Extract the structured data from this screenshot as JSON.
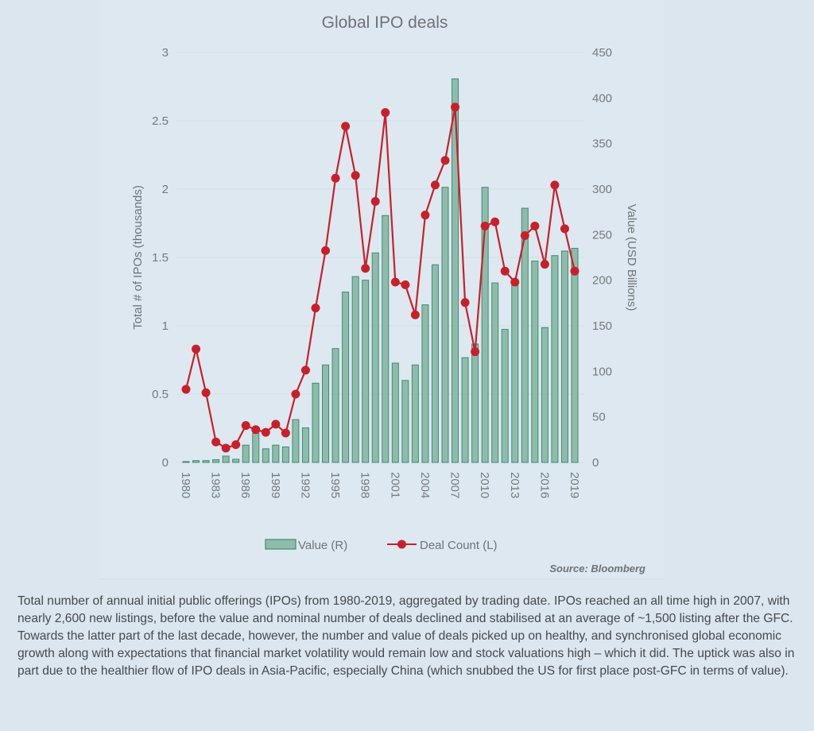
{
  "chart_data": {
    "type": "bar+line",
    "title": "Global IPO deals",
    "ylabel_left": "Total # of IPOs (thousands)",
    "ylabel_right": "Value (USD Billions)",
    "xlabel": "",
    "ylim_left": [
      0,
      3
    ],
    "ylim_right": [
      0,
      450
    ],
    "yticks_left": [
      "0",
      "0.5",
      "1",
      "1.5",
      "2",
      "2.5",
      "3"
    ],
    "yticks_right": [
      "0",
      "50",
      "100",
      "150",
      "200",
      "250",
      "300",
      "350",
      "400",
      "450"
    ],
    "xtick_labels": [
      "1980",
      "1983",
      "1986",
      "1989",
      "1992",
      "1995",
      "1998",
      "2001",
      "2004",
      "2007",
      "2010",
      "2013",
      "2016",
      "2019"
    ],
    "grid": true,
    "legend_position": "bottom",
    "categories": [
      "1980",
      "1981",
      "1982",
      "1983",
      "1984",
      "1985",
      "1986",
      "1987",
      "1988",
      "1989",
      "1990",
      "1991",
      "1992",
      "1993",
      "1994",
      "1995",
      "1996",
      "1997",
      "1998",
      "1999",
      "2000",
      "2001",
      "2002",
      "2003",
      "2004",
      "2005",
      "2006",
      "2007",
      "2008",
      "2009",
      "2010",
      "2011",
      "2012",
      "2013",
      "2014",
      "2015",
      "2016",
      "2017",
      "2018",
      "2019"
    ],
    "series": [
      {
        "name": "Value (R)",
        "type": "bar",
        "axis": "right",
        "color": "#8fbcaa",
        "edge_color": "#3f8a73",
        "values": [
          1,
          2,
          2,
          3,
          7,
          3.5,
          19,
          32,
          15,
          19,
          17,
          47,
          38,
          87,
          107,
          125,
          187,
          204,
          200,
          230,
          271,
          109,
          90,
          107,
          173,
          217,
          302,
          421,
          115,
          130,
          302,
          197,
          146,
          200,
          279,
          221,
          148,
          227,
          232,
          235
        ]
      },
      {
        "name": "Deal Count (L)",
        "type": "line",
        "axis": "left",
        "color": "#c8202a",
        "values": [
          0.535,
          0.83,
          0.51,
          0.15,
          0.105,
          0.13,
          0.27,
          0.24,
          0.22,
          0.28,
          0.215,
          0.5,
          0.675,
          1.13,
          1.55,
          2.08,
          2.46,
          2.1,
          1.42,
          1.91,
          2.56,
          1.32,
          1.3,
          1.08,
          1.81,
          2.03,
          2.21,
          2.6,
          1.17,
          0.81,
          1.73,
          1.76,
          1.4,
          1.32,
          1.66,
          1.73,
          1.45,
          2.03,
          1.71,
          1.4
        ]
      }
    ],
    "source": "Source: Bloomberg"
  },
  "caption": "Total number of annual initial public offerings (IPOs) from 1980-2019, aggregated by trading date. IPOs reached an all time high in 2007, with nearly 2,600 new listings, before the value and nominal number of deals declined and stabilised at an average of ~1,500 listing after the GFC. Towards the latter part of the last decade, however, the number and value of deals picked up on healthy, and synchronised global economic growth along with expectations that financial market volatility would remain low and stock valuations high – which it did. The uptick was also in part due to the healthier flow of IPO deals in Asia-Pacific, especially China (which snubbed the US for first place post-GFC in terms of value)."
}
